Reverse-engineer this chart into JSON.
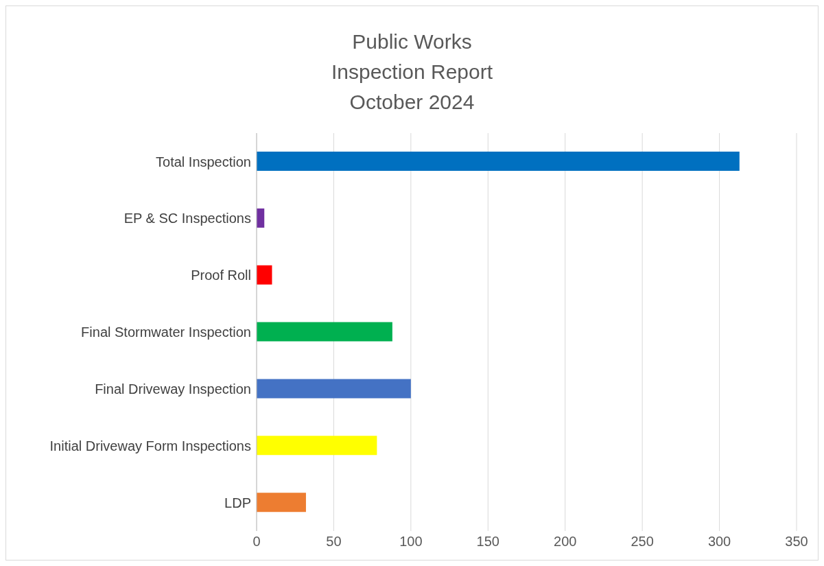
{
  "chart_data": {
    "type": "bar",
    "orientation": "horizontal",
    "title": "Public Works\nInspection Report\nOctober 2024",
    "categories": [
      "Total Inspection",
      "EP & SC Inspections",
      "Proof Roll",
      "Final Stormwater Inspection",
      "Final Driveway Inspection",
      "Initial Driveway Form Inspections",
      "LDP"
    ],
    "values": [
      313,
      5,
      10,
      88,
      100,
      78,
      32
    ],
    "colors": [
      "#0070c0",
      "#7030a0",
      "#ff0000",
      "#00b050",
      "#4472c4",
      "#ffff00",
      "#ed7d31"
    ],
    "xlim": [
      0,
      350
    ],
    "xticks": [
      0,
      50,
      100,
      150,
      200,
      250,
      300,
      350
    ],
    "grid": "x"
  }
}
